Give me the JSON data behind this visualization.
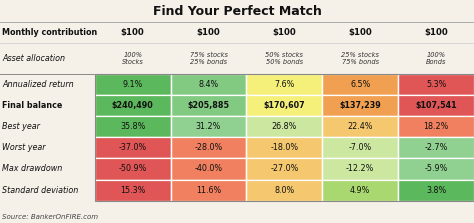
{
  "title": "Find Your Perfect Match",
  "source": "Source: BankerOnFIRE.com",
  "col_headers": [
    "$100",
    "$100",
    "$100",
    "$100",
    "$100"
  ],
  "asset_alloc": [
    "100%\nStocks",
    "75% stocks\n25% bonds",
    "50% stocks\n50% bonds",
    "25% stocks\n75% bonds",
    "100%\nBonds"
  ],
  "rows": [
    "Monthly contribution",
    "Asset allocation",
    "Annualized return",
    "Final balance",
    "Best year",
    "Worst year",
    "Max drawdown",
    "Standard deviation"
  ],
  "table_data": [
    [
      "9.1%",
      "8.4%",
      "7.6%",
      "6.5%",
      "5.3%"
    ],
    [
      "$240,490",
      "$205,885",
      "$170,607",
      "$137,239",
      "$107,541"
    ],
    [
      "35.8%",
      "31.2%",
      "26.8%",
      "22.4%",
      "18.2%"
    ],
    [
      "-37.0%",
      "-28.0%",
      "-18.0%",
      "-7.0%",
      "-2.7%"
    ],
    [
      "-50.9%",
      "-40.0%",
      "-27.0%",
      "-12.2%",
      "-5.9%"
    ],
    [
      "15.3%",
      "11.6%",
      "8.0%",
      "4.9%",
      "3.8%"
    ]
  ],
  "colors": {
    "Annualized return": [
      "#5cb85c",
      "#82c982",
      "#f5f07a",
      "#f0a050",
      "#e05555"
    ],
    "Final balance": [
      "#5cb85c",
      "#82c982",
      "#f5f07a",
      "#f0a050",
      "#e05555"
    ],
    "Best year": [
      "#5cb85c",
      "#90d090",
      "#cce8a0",
      "#f5c870",
      "#f08060"
    ],
    "Worst year": [
      "#e05555",
      "#f08060",
      "#f5c870",
      "#cce8a0",
      "#90d090"
    ],
    "Max drawdown": [
      "#e05555",
      "#f08060",
      "#f5c870",
      "#cce8a0",
      "#90d090"
    ],
    "Standard deviation": [
      "#e05555",
      "#f08060",
      "#f5c870",
      "#aad870",
      "#5cb85c"
    ]
  },
  "bg_color": "#f5f0e8",
  "title_fontsize": 9,
  "label_fontsize": 5.8,
  "cell_fontsize": 5.8,
  "header_fontsize": 6.2,
  "source_fontsize": 5.0
}
